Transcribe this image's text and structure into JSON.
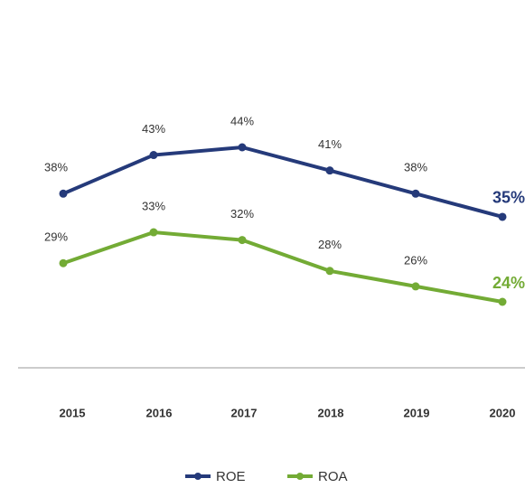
{
  "chart_data": {
    "type": "line",
    "categories": [
      "2015",
      "2016",
      "2017",
      "2018",
      "2019",
      "2020"
    ],
    "series": [
      {
        "name": "ROE",
        "color": "#253a7a",
        "values": [
          38,
          43,
          44,
          41,
          38,
          35
        ],
        "value_labels": [
          "38%",
          "43%",
          "44%",
          "41%",
          "38%",
          "35%"
        ]
      },
      {
        "name": "ROA",
        "color": "#73ab35",
        "values": [
          29,
          33,
          32,
          28,
          26,
          24
        ],
        "value_labels": [
          "29%",
          "33%",
          "32%",
          "28%",
          "26%",
          "24%"
        ]
      }
    ],
    "legend": "bottom"
  }
}
